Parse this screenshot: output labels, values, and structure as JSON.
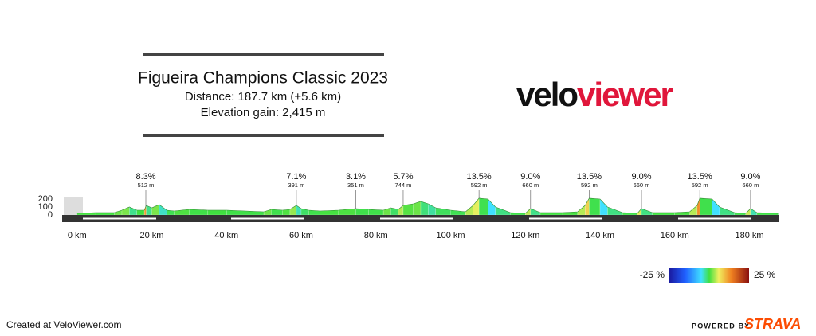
{
  "header": {
    "title": "Figueira Champions Classic 2023",
    "distance": "Distance: 187.7 km (+5.6 km)",
    "elevation_gain": "Elevation gain: 2,415 m"
  },
  "logo": {
    "velo": "velo",
    "viewer": "viewer"
  },
  "chart_data": {
    "type": "area",
    "x": [
      0,
      5,
      10,
      12,
      14,
      16,
      18,
      18.5,
      20,
      22,
      24,
      26,
      30,
      35,
      40,
      45,
      50,
      52,
      55,
      57,
      58.7,
      60,
      62,
      65,
      70,
      74.6,
      78,
      82,
      84,
      86,
      87.3,
      90,
      92,
      94,
      96,
      100,
      104,
      106,
      107.6,
      110,
      112,
      116,
      120,
      121.4,
      124,
      130,
      134,
      136,
      137.1,
      140,
      142,
      146,
      150,
      151.1,
      154,
      160,
      164,
      166,
      166.7,
      170,
      172,
      176,
      179,
      180.3,
      182,
      187.7
    ],
    "values": [
      20,
      30,
      30,
      60,
      100,
      60,
      60,
      120,
      90,
      130,
      60,
      50,
      70,
      60,
      60,
      50,
      40,
      70,
      60,
      70,
      120,
      80,
      60,
      50,
      60,
      80,
      70,
      60,
      90,
      70,
      120,
      140,
      170,
      140,
      90,
      60,
      40,
      120,
      210,
      200,
      100,
      30,
      20,
      80,
      30,
      30,
      40,
      120,
      210,
      200,
      100,
      30,
      20,
      80,
      30,
      30,
      40,
      120,
      210,
      200,
      100,
      30,
      20,
      80,
      30,
      20
    ],
    "xlim": [
      -4,
      188
    ],
    "ylim": [
      0,
      200
    ],
    "xticks": [
      {
        "value": 0,
        "label": "0 km"
      },
      {
        "value": 20,
        "label": "20 km"
      },
      {
        "value": 40,
        "label": "40 km"
      },
      {
        "value": 60,
        "label": "60 km"
      },
      {
        "value": 80,
        "label": "80 km"
      },
      {
        "value": 100,
        "label": "100 km"
      },
      {
        "value": 120,
        "label": "120 km"
      },
      {
        "value": 140,
        "label": "140 km"
      },
      {
        "value": 160,
        "label": "160 km"
      },
      {
        "value": 180,
        "label": "180 km"
      }
    ],
    "yticks": [
      0,
      100,
      200
    ],
    "annotations": [
      {
        "x": 18.4,
        "label": "8.3%",
        "sublabel": "512 m"
      },
      {
        "x": 58.7,
        "label": "7.1%",
        "sublabel": "391 m"
      },
      {
        "x": 74.6,
        "label": "3.1%",
        "sublabel": "351 m"
      },
      {
        "x": 87.3,
        "label": "5.7%",
        "sublabel": "744 m"
      },
      {
        "x": 107.6,
        "label": "13.5%",
        "sublabel": "592 m"
      },
      {
        "x": 121.4,
        "label": "9.0%",
        "sublabel": "660 m"
      },
      {
        "x": 137.1,
        "label": "13.5%",
        "sublabel": "592 m"
      },
      {
        "x": 151.1,
        "label": "9.0%",
        "sublabel": "660 m"
      },
      {
        "x": 166.7,
        "label": "13.5%",
        "sublabel": "592 m"
      },
      {
        "x": 180.3,
        "label": "9.0%",
        "sublabel": "660 m"
      }
    ],
    "color_ticks": [
      {
        "value": -25,
        "label": "-25 %"
      },
      {
        "value": 25,
        "label": "25 %"
      }
    ]
  },
  "footer": {
    "created": "Created at VeloViewer.com",
    "powered": "POWERED BY",
    "strava": "STRAVA"
  }
}
